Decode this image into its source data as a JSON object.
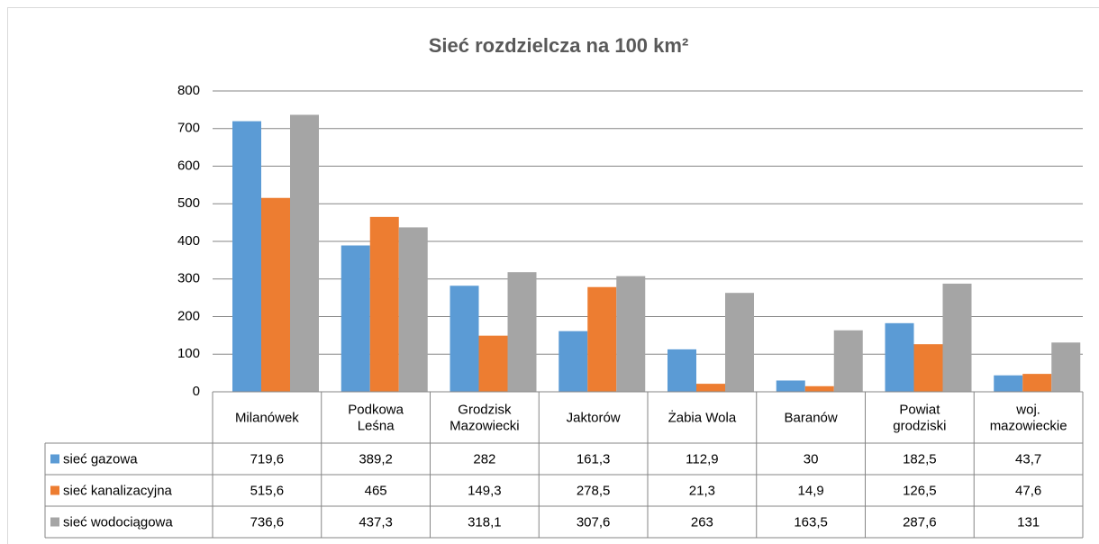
{
  "chart_data": {
    "type": "bar",
    "title": "Sieć rozdzielcza na 100 km²",
    "categories": [
      "Milanówek",
      "Podkowa\nLeśna",
      "Grodzisk\nMazowiecki",
      "Jaktorów",
      "Żabia Wola",
      "Baranów",
      "Powiat\ngrodziski",
      "woj.\nmazowieckie"
    ],
    "series": [
      {
        "name": "sieć gazowa",
        "color": "#5b9bd5",
        "values": [
          719.6,
          389.2,
          282,
          161.3,
          112.9,
          30,
          182.5,
          43.7
        ],
        "value_labels": [
          "719,6",
          "389,2",
          "282",
          "161,3",
          "112,9",
          "30",
          "182,5",
          "43,7"
        ]
      },
      {
        "name": "sieć kanalizacyjna",
        "color": "#ed7d31",
        "values": [
          515.6,
          465,
          149.3,
          278.5,
          21.3,
          14.9,
          126.5,
          47.6
        ],
        "value_labels": [
          "515,6",
          "465",
          "149,3",
          "278,5",
          "21,3",
          "14,9",
          "126,5",
          "47,6"
        ]
      },
      {
        "name": "sieć wodociągowa",
        "color": "#a5a5a5",
        "values": [
          736.6,
          437.3,
          318.1,
          307.6,
          263,
          163.5,
          287.6,
          131
        ],
        "value_labels": [
          "736,6",
          "437,3",
          "318,1",
          "307,6",
          "263",
          "163,5",
          "287,6",
          "131"
        ]
      }
    ],
    "ylim": [
      0,
      800
    ],
    "yticks": [
      0,
      100,
      200,
      300,
      400,
      500,
      600,
      700,
      800
    ],
    "grid": true
  }
}
